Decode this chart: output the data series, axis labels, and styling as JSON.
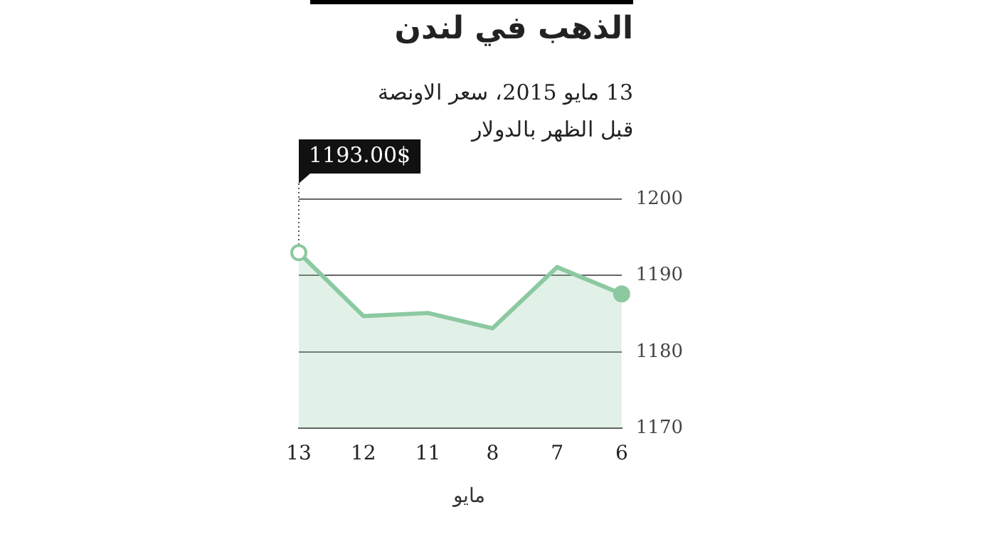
{
  "chart_data": {
    "type": "area",
    "title": "الذهب في لندن",
    "subtitle": "13 مايو 2015، سعر الاونصة\nقبل الظهر بالدولار",
    "xlabel": "مايو",
    "categories": [
      "13",
      "12",
      "11",
      "8",
      "7",
      "6"
    ],
    "series": [
      {
        "color": "#8cc9a0",
        "values": [
          1193.0,
          1184.7,
          1185.1,
          1183.1,
          1191.1,
          1187.6
        ]
      }
    ],
    "ylim": [
      1170,
      1200
    ],
    "yticks": [
      1170,
      1180,
      1190,
      1200
    ],
    "grid": "y",
    "legend": false,
    "annotations": [
      {
        "text": "1193.00$",
        "x": "13",
        "y": 1193.0
      }
    ]
  }
}
